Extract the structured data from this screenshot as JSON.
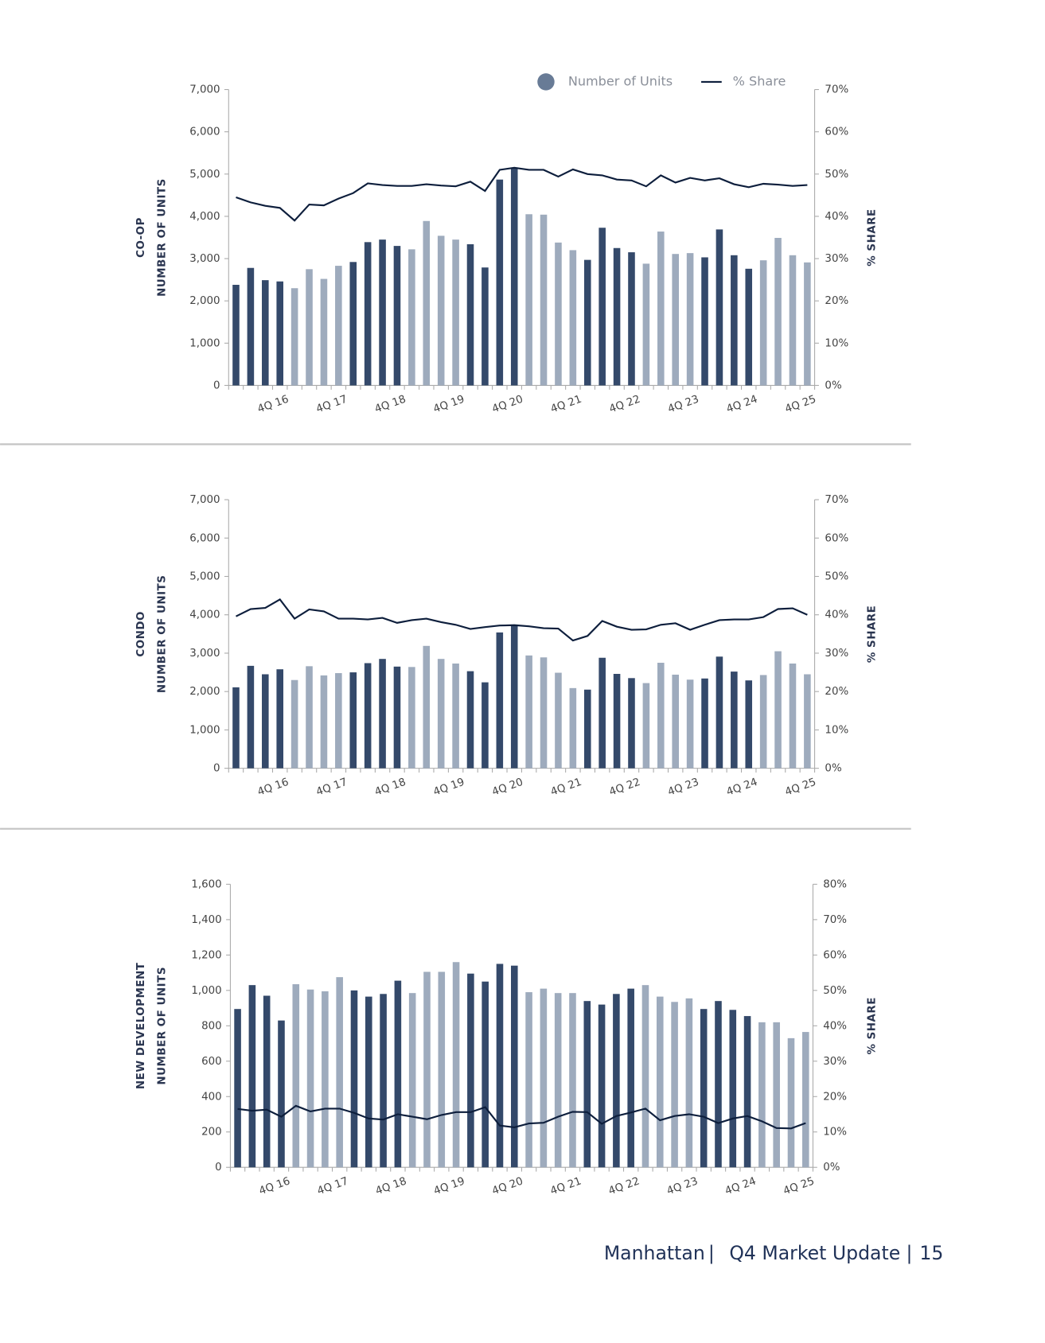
{
  "chart_data": [
    {
      "type": "combo",
      "section": "CO-OP",
      "ylabel": "NUMBER OF UNITS",
      "y2label": "% SHARE",
      "legend": "top-right",
      "categories": [
        null,
        null,
        null,
        "4Q 16",
        null,
        null,
        null,
        "4Q 17",
        null,
        null,
        null,
        "4Q 18",
        null,
        null,
        null,
        "4Q 19",
        null,
        null,
        null,
        "4Q 20",
        null,
        null,
        null,
        "4Q 21",
        null,
        null,
        null,
        "4Q 22",
        null,
        null,
        null,
        "4Q 23",
        null,
        null,
        null,
        "4Q 24",
        null,
        null,
        null,
        "4Q 25"
      ],
      "ylim": [
        0,
        7000
      ],
      "yticks": [
        0,
        {
          "value": 1000,
          "label": "1,000"
        },
        {
          "value": 2000,
          "label": "2,000"
        },
        {
          "value": 3000,
          "label": "3,000"
        },
        {
          "value": 4000,
          "label": "4,000"
        },
        {
          "value": 5000,
          "label": "5,000"
        },
        {
          "value": 6000,
          "label": "6,000"
        },
        {
          "value": 7000,
          "label": "7,000"
        }
      ],
      "y2lim": [
        0,
        70
      ],
      "y2ticks": [
        {
          "value": 0,
          "label": "0%"
        },
        {
          "value": 10,
          "label": "10%"
        },
        {
          "value": 20,
          "label": "20%"
        },
        {
          "value": 30,
          "label": "30%"
        },
        {
          "value": 40,
          "label": "40%"
        },
        {
          "value": 50,
          "label": "50%"
        },
        {
          "value": 60,
          "label": "60%"
        },
        {
          "value": 70,
          "label": "70%"
        }
      ],
      "series": [
        {
          "name": "Number of Units",
          "type": "bar",
          "colors": [
            "#34496a",
            "#9eabbd"
          ],
          "legend_color": "#687b96",
          "values": [
            2380,
            2780,
            2490,
            2460,
            2300,
            2750,
            2520,
            2830,
            2920,
            3390,
            3450,
            3300,
            3220,
            3890,
            3540,
            3450,
            3340,
            2790,
            4870,
            5150,
            4050,
            4040,
            3380,
            3200,
            2970,
            3730,
            3250,
            3150,
            2880,
            3640,
            3110,
            3130,
            3030,
            3690,
            3080,
            2760,
            2960,
            3490,
            3080,
            2910
          ]
        },
        {
          "name": "% Share",
          "type": "line",
          "axis": "y2",
          "color": "#0d1e3c",
          "values": [
            44.5,
            43.3,
            42.5,
            42,
            39,
            42.8,
            42.6,
            44.2,
            45.5,
            47.8,
            47.4,
            47.2,
            47.2,
            47.6,
            47.3,
            47.1,
            48.2,
            46,
            51,
            51.5,
            51,
            51,
            49.4,
            51.1,
            50,
            49.7,
            48.7,
            48.5,
            47.1,
            49.7,
            48,
            49.1,
            48.5,
            49,
            47.6,
            46.9,
            47.7,
            47.5,
            47.2,
            47.4
          ]
        }
      ]
    },
    {
      "type": "combo",
      "section": "CONDO",
      "ylabel": "NUMBER OF UNITS",
      "y2label": "% SHARE",
      "categories": [
        null,
        null,
        null,
        "4Q 16",
        null,
        null,
        null,
        "4Q 17",
        null,
        null,
        null,
        "4Q 18",
        null,
        null,
        null,
        "4Q 19",
        null,
        null,
        null,
        "4Q 20",
        null,
        null,
        null,
        "4Q 21",
        null,
        null,
        null,
        "4Q 22",
        null,
        null,
        null,
        "4Q 23",
        null,
        null,
        null,
        "4Q 24",
        null,
        null,
        null,
        "4Q 25"
      ],
      "ylim": [
        0,
        7000
      ],
      "yticks": [
        0,
        {
          "value": 1000,
          "label": "1,000"
        },
        {
          "value": 2000,
          "label": "2,000"
        },
        {
          "value": 3000,
          "label": "3,000"
        },
        {
          "value": 4000,
          "label": "4,000"
        },
        {
          "value": 5000,
          "label": "5,000"
        },
        {
          "value": 6000,
          "label": "6,000"
        },
        {
          "value": 7000,
          "label": "7,000"
        }
      ],
      "y2lim": [
        0,
        70
      ],
      "y2ticks": [
        {
          "value": 0,
          "label": "0%"
        },
        {
          "value": 10,
          "label": "10%"
        },
        {
          "value": 20,
          "label": "20%"
        },
        {
          "value": 30,
          "label": "30%"
        },
        {
          "value": 40,
          "label": "40%"
        },
        {
          "value": 50,
          "label": "50%"
        },
        {
          "value": 60,
          "label": "60%"
        },
        {
          "value": 70,
          "label": "70%"
        }
      ],
      "series": [
        {
          "type": "bar",
          "colors": [
            "#34496a",
            "#9eabbd"
          ],
          "values": [
            2110,
            2670,
            2450,
            2580,
            2300,
            2660,
            2420,
            2480,
            2500,
            2740,
            2850,
            2650,
            2640,
            3190,
            2850,
            2730,
            2530,
            2240,
            3540,
            3730,
            2940,
            2890,
            2490,
            2090,
            2050,
            2880,
            2460,
            2350,
            2220,
            2750,
            2440,
            2310,
            2340,
            2910,
            2520,
            2290,
            2430,
            3050,
            2730,
            2450
          ]
        },
        {
          "type": "line",
          "axis": "y2",
          "color": "#0d1e3c",
          "values": [
            39.6,
            41.5,
            41.8,
            44,
            39,
            41.4,
            40.9,
            39,
            39,
            38.8,
            39.2,
            37.9,
            38.6,
            39,
            38.1,
            37.4,
            36.3,
            36.8,
            37.2,
            37.3,
            37,
            36.5,
            36.4,
            33.3,
            34.5,
            38.4,
            36.9,
            36.1,
            36.2,
            37.4,
            37.8,
            36.1,
            37.4,
            38.6,
            38.8,
            38.8,
            39.4,
            41.5,
            41.7,
            40
          ]
        }
      ]
    },
    {
      "type": "combo",
      "section": "NEW DEVELOPMENT",
      "ylabel": "NUMBER OF UNITS",
      "y2label": "% SHARE",
      "categories": [
        null,
        null,
        null,
        "4Q 16",
        null,
        null,
        null,
        "4Q 17",
        null,
        null,
        null,
        "4Q 18",
        null,
        null,
        null,
        "4Q 19",
        null,
        null,
        null,
        "4Q 20",
        null,
        null,
        null,
        "4Q 21",
        null,
        null,
        null,
        "4Q 22",
        null,
        null,
        null,
        "4Q 23",
        null,
        null,
        null,
        "4Q 24",
        null,
        null,
        null,
        "4Q 25"
      ],
      "ylim": [
        0,
        1600
      ],
      "yticks": [
        0,
        200,
        400,
        600,
        800,
        {
          "value": 1000,
          "label": "1,000"
        },
        {
          "value": 1200,
          "label": "1,200"
        },
        {
          "value": 1400,
          "label": "1,400"
        },
        {
          "value": 1600,
          "label": "1,600"
        }
      ],
      "y2lim": [
        0,
        80
      ],
      "y2ticks": [
        {
          "value": 0,
          "label": "0%"
        },
        {
          "value": 10,
          "label": "10%"
        },
        {
          "value": 20,
          "label": "20%"
        },
        {
          "value": 30,
          "label": "30%"
        },
        {
          "value": 40,
          "label": "40%"
        },
        {
          "value": 50,
          "label": "50%"
        },
        {
          "value": 60,
          "label": "60%"
        },
        {
          "value": 70,
          "label": "70%"
        },
        {
          "value": 80,
          "label": "80%"
        }
      ],
      "series": [
        {
          "type": "bar",
          "colors": [
            "#34496a",
            "#9eabbd"
          ],
          "values": [
            895,
            1030,
            970,
            830,
            1035,
            1005,
            995,
            1075,
            1000,
            965,
            980,
            1055,
            985,
            1105,
            1105,
            1160,
            1095,
            1050,
            1150,
            1140,
            990,
            1010,
            985,
            985,
            940,
            920,
            980,
            1010,
            1030,
            965,
            935,
            955,
            895,
            940,
            890,
            855,
            820,
            820,
            730,
            765
          ]
        },
        {
          "type": "line",
          "axis": "y2",
          "color": "#0d1e3c",
          "values": [
            16.5,
            16,
            16.3,
            14.3,
            17.4,
            15.8,
            16.6,
            16.6,
            15.4,
            13.8,
            13.5,
            15,
            14.3,
            13.6,
            14.8,
            15.6,
            15.6,
            17,
            11.8,
            11.3,
            12.4,
            12.6,
            14.3,
            15.7,
            15.6,
            12.3,
            14.5,
            15.5,
            16.6,
            13.3,
            14.5,
            15,
            14.3,
            12.5,
            13.8,
            14.5,
            13,
            11.1,
            11,
            12.5
          ]
        }
      ]
    }
  ],
  "footer": {
    "location": "Manhattan",
    "title": "Q4 Market Update",
    "page": "15"
  }
}
